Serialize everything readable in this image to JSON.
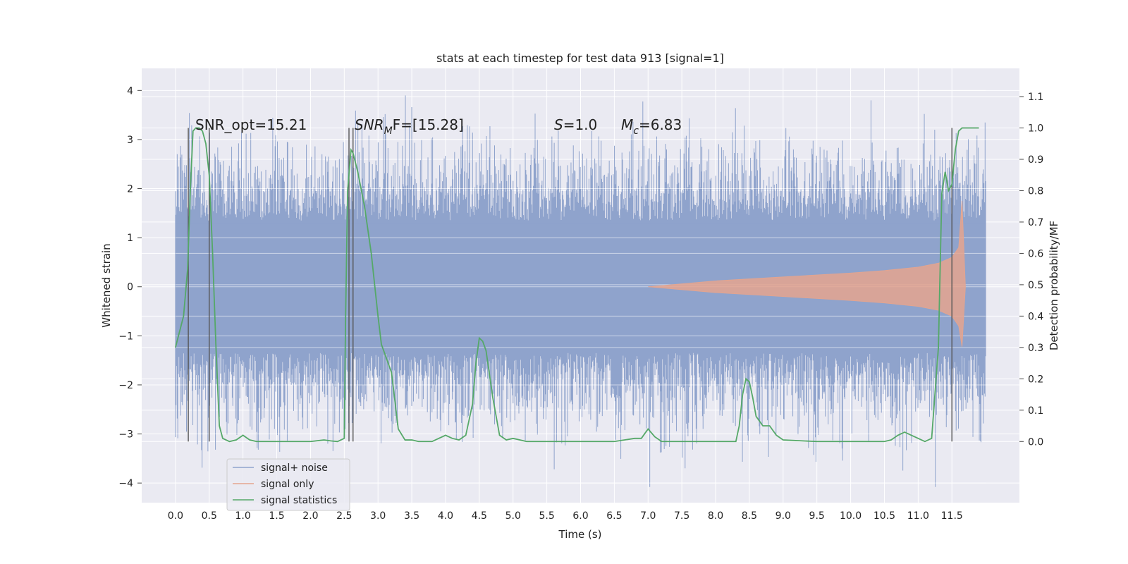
{
  "chart_data": {
    "type": "line",
    "title": "stats at each timestep for test data 913 [signal=1]",
    "xlabel": "Time (s)",
    "ylabel_left": "Whitened strain",
    "ylabel_right": "Detection probability/MF",
    "xlim": [
      -0.5,
      12.5
    ],
    "ylim_left": [
      -4.4,
      4.45
    ],
    "ylim_right": [
      -0.195,
      1.19
    ],
    "x_ticks": [
      "0.0",
      "0.5",
      "1.0",
      "1.5",
      "2.0",
      "2.5",
      "3.0",
      "3.5",
      "4.0",
      "4.5",
      "5.0",
      "5.5",
      "6.0",
      "6.5",
      "7.0",
      "7.5",
      "8.0",
      "8.5",
      "9.0",
      "9.5",
      "10.0",
      "10.5",
      "11.0",
      "11.5"
    ],
    "y_left_ticks": [
      "4",
      "3",
      "2",
      "1",
      "0",
      "−1",
      "−2",
      "−3",
      "−4"
    ],
    "y_right_ticks": [
      "1.1",
      "1.0",
      "0.9",
      "0.8",
      "0.7",
      "0.6",
      "0.5",
      "0.4",
      "0.3",
      "0.2",
      "0.1",
      "0.0"
    ],
    "grid": true,
    "legend_position": "lower-left",
    "annotations": {
      "snr_opt": "SNR_opt=15.21",
      "snr_mf_a": "SNR",
      "snr_mf_b": "M",
      "snr_mf_c": "F=[15.28]",
      "s_a": "S",
      "s_b": "=1.0",
      "mc_a": "M",
      "mc_b": "c",
      "mc_c": "=6.83"
    },
    "vertical_lines_x": [
      0.19,
      0.5,
      2.57,
      2.63,
      11.5
    ],
    "series": [
      {
        "name": "signal+ noise",
        "color": "#8fa3cc",
        "description_x_range": [
          0.0,
          12.0
        ],
        "envelope_y": [
          -4.08,
          4.1
        ]
      },
      {
        "name": "signal only",
        "color": "#e5a58e",
        "x": [
          7.0,
          8.0,
          9.0,
          10.0,
          10.5,
          11.0,
          11.3,
          11.5,
          11.6,
          11.65,
          11.7
        ],
        "amplitude": [
          0.0,
          0.12,
          0.2,
          0.28,
          0.33,
          0.4,
          0.48,
          0.6,
          0.8,
          1.75,
          0.0
        ]
      },
      {
        "name": "signal statistics",
        "color": "#55a868",
        "x": [
          0.0,
          0.12,
          0.18,
          0.22,
          0.26,
          0.3,
          0.35,
          0.4,
          0.45,
          0.5,
          0.55,
          0.6,
          0.65,
          0.7,
          0.8,
          0.9,
          1.0,
          1.1,
          1.2,
          1.5,
          2.0,
          2.2,
          2.3,
          2.4,
          2.5,
          2.52,
          2.55,
          2.6,
          2.63,
          2.7,
          2.8,
          2.9,
          2.95,
          3.0,
          3.05,
          3.1,
          3.2,
          3.3,
          3.4,
          3.5,
          3.6,
          3.8,
          3.9,
          4.0,
          4.1,
          4.2,
          4.3,
          4.4,
          4.45,
          4.5,
          4.55,
          4.6,
          4.7,
          4.8,
          4.9,
          5.0,
          5.1,
          5.2,
          5.5,
          6.0,
          6.5,
          6.8,
          6.9,
          7.0,
          7.1,
          7.2,
          7.5,
          8.0,
          8.3,
          8.35,
          8.4,
          8.45,
          8.5,
          8.55,
          8.6,
          8.7,
          8.8,
          8.9,
          9.0,
          9.5,
          10.0,
          10.3,
          10.5,
          10.6,
          10.7,
          10.8,
          10.9,
          11.0,
          11.1,
          11.2,
          11.3,
          11.35,
          11.4,
          11.45,
          11.5,
          11.55,
          11.6,
          11.65,
          11.7,
          11.8,
          11.9
        ],
        "values": [
          0.3,
          0.4,
          0.55,
          0.8,
          0.99,
          1.0,
          1.0,
          0.99,
          0.95,
          0.85,
          0.6,
          0.3,
          0.05,
          0.01,
          0.0,
          0.005,
          0.02,
          0.005,
          0.0,
          0.0,
          0.0,
          0.005,
          0.002,
          0.0,
          0.01,
          0.4,
          0.8,
          0.93,
          0.92,
          0.86,
          0.75,
          0.6,
          0.5,
          0.4,
          0.31,
          0.28,
          0.22,
          0.04,
          0.005,
          0.005,
          0.0,
          0.0,
          0.01,
          0.02,
          0.01,
          0.005,
          0.02,
          0.12,
          0.25,
          0.33,
          0.32,
          0.29,
          0.14,
          0.02,
          0.005,
          0.01,
          0.005,
          0.0,
          0.0,
          0.0,
          0.0,
          0.01,
          0.01,
          0.04,
          0.015,
          0.0,
          0.0,
          0.0,
          0.0,
          0.05,
          0.15,
          0.2,
          0.19,
          0.14,
          0.08,
          0.05,
          0.05,
          0.02,
          0.005,
          0.0,
          0.0,
          0.0,
          0.0,
          0.005,
          0.02,
          0.03,
          0.02,
          0.01,
          0.0,
          0.01,
          0.3,
          0.79,
          0.86,
          0.8,
          0.82,
          0.93,
          0.99,
          1.0,
          1.0,
          1.0,
          1.0
        ]
      }
    ]
  }
}
